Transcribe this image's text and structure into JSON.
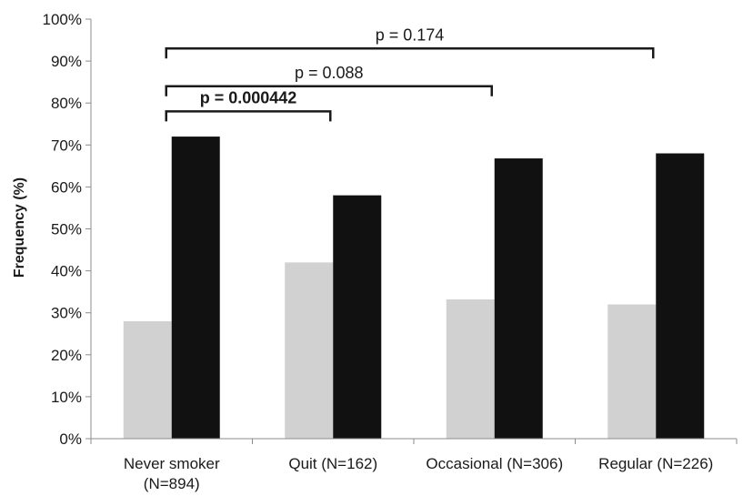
{
  "chart_data": {
    "type": "bar",
    "title": "",
    "xlabel": "",
    "ylabel": "Frequency (%)",
    "ylim": [
      0,
      100
    ],
    "yticks": [
      "0%",
      "10%",
      "20%",
      "30%",
      "40%",
      "50%",
      "60%",
      "70%",
      "80%",
      "90%",
      "100%"
    ],
    "categories": [
      [
        "Never smoker",
        "(N=894)"
      ],
      [
        "Quit (N=162)"
      ],
      [
        "Occasional (N=306)"
      ],
      [
        "Regular (N=226)"
      ]
    ],
    "series": [
      {
        "values": [
          28,
          42,
          33.2,
          32
        ],
        "color": "#d0d1d0"
      },
      {
        "values": [
          72,
          58,
          66.8,
          68
        ],
        "color": "#111111"
      }
    ],
    "grid": false,
    "legend": "none",
    "annotations": [
      {
        "text": "p = 0.000442",
        "from": 0,
        "to": 1,
        "bold": true,
        "level": 78
      },
      {
        "text": "p = 0.088",
        "from": 0,
        "to": 2,
        "bold": false,
        "level": 84
      },
      {
        "text": "p = 0.174",
        "from": 0,
        "to": 3,
        "bold": false,
        "level": 93
      }
    ]
  }
}
